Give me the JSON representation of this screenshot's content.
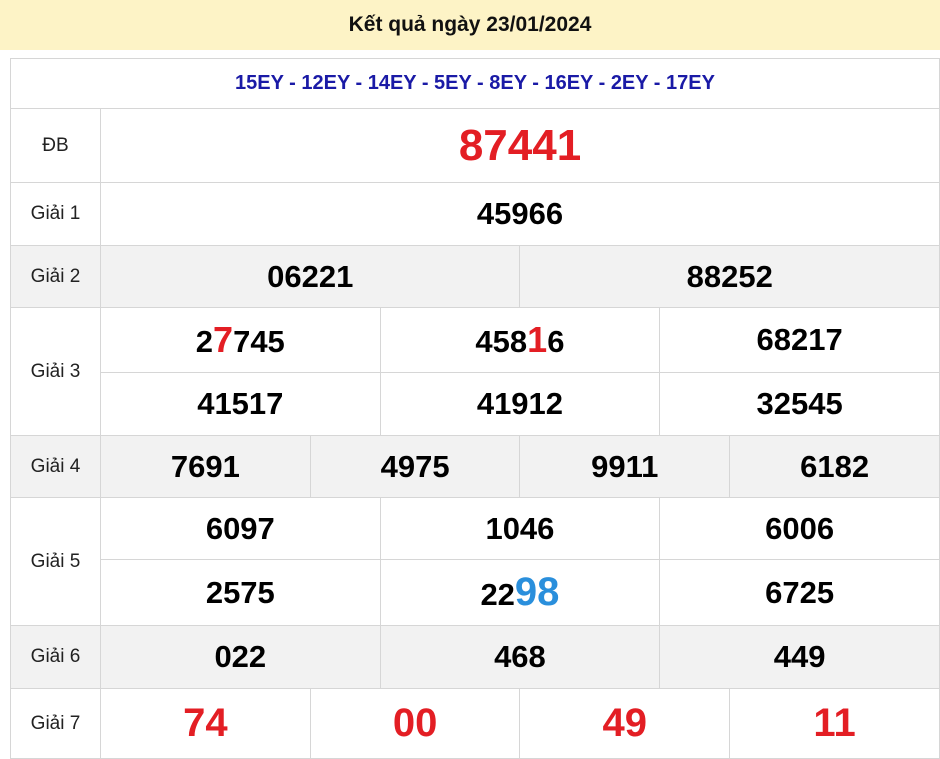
{
  "header": {
    "title": "Kết quả ngày 23/01/2024"
  },
  "codes": "15EY - 12EY - 14EY - 5EY - 8EY - 16EY - 2EY - 17EY",
  "colors": {
    "header_bg": "#fdf3c6",
    "codes": "#1a1aa6",
    "special": "#e31e24",
    "highlight_blue": "#2a8fdc"
  },
  "prizes": {
    "db": {
      "label": "ĐB",
      "value": "87441"
    },
    "g1": {
      "label": "Giải 1",
      "values": [
        "45966"
      ]
    },
    "g2": {
      "label": "Giải 2",
      "values": [
        "06221",
        "88252"
      ]
    },
    "g3": {
      "label": "Giải 3",
      "values": [
        [
          "2",
          "7",
          "745"
        ],
        [
          "458",
          "1",
          "6"
        ],
        [
          "68217"
        ],
        [
          "41517"
        ],
        [
          "41912"
        ],
        [
          "32545"
        ]
      ]
    },
    "g4": {
      "label": "Giải 4",
      "values": [
        "7691",
        "4975",
        "9911",
        "6182"
      ]
    },
    "g5": {
      "label": "Giải 5",
      "values": [
        "6097",
        "1046",
        "6006",
        "2575",
        [
          "22",
          "98"
        ],
        "6725"
      ]
    },
    "g6": {
      "label": "Giải 6",
      "values": [
        "022",
        "468",
        "449"
      ]
    },
    "g7": {
      "label": "Giải 7",
      "values": [
        "74",
        "00",
        "49",
        "11"
      ]
    }
  }
}
